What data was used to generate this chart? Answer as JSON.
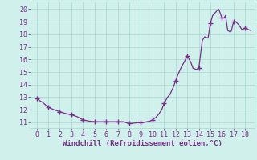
{
  "x": [
    0,
    0.3,
    0.5,
    1.0,
    1.5,
    2.0,
    2.5,
    3.0,
    3.5,
    4.0,
    4.5,
    5.0,
    5.5,
    6.0,
    6.5,
    7.0,
    7.5,
    8.0,
    8.5,
    9.0,
    9.3,
    9.5,
    9.8,
    10.0,
    10.3,
    10.5,
    10.8,
    11.0,
    11.3,
    11.5,
    11.8,
    12.0,
    12.2,
    12.5,
    12.8,
    13.0,
    13.3,
    13.5,
    13.8,
    14.0,
    14.3,
    14.5,
    14.8,
    15.0,
    15.2,
    15.3,
    15.5,
    15.7,
    15.8,
    16.0,
    16.2,
    16.3,
    16.5,
    16.7,
    16.8,
    17.0,
    17.2,
    17.3,
    17.5,
    17.7,
    17.8,
    18.0,
    18.2,
    18.5
  ],
  "y": [
    12.9,
    12.7,
    12.6,
    12.2,
    12.0,
    11.85,
    11.7,
    11.6,
    11.45,
    11.2,
    11.1,
    11.05,
    11.05,
    11.05,
    11.05,
    11.05,
    11.05,
    10.9,
    10.95,
    11.0,
    11.0,
    11.05,
    11.1,
    11.2,
    11.4,
    11.6,
    12.0,
    12.5,
    13.0,
    13.2,
    13.8,
    14.3,
    14.8,
    15.4,
    15.9,
    16.3,
    15.8,
    15.3,
    15.2,
    15.3,
    17.5,
    17.8,
    17.7,
    18.9,
    19.5,
    19.6,
    19.8,
    20.0,
    19.8,
    19.3,
    19.3,
    19.5,
    18.3,
    18.2,
    18.25,
    19.0,
    19.0,
    18.9,
    18.7,
    18.4,
    18.4,
    18.5,
    18.4,
    18.3
  ],
  "marker_x": [
    0,
    1,
    2,
    3,
    4,
    5,
    6,
    7,
    8,
    9,
    10,
    11,
    12,
    13,
    14,
    15,
    16,
    17,
    18
  ],
  "marker_y": [
    12.9,
    12.2,
    11.85,
    11.6,
    11.2,
    11.05,
    11.05,
    11.05,
    10.9,
    11.0,
    11.2,
    12.5,
    14.3,
    16.3,
    15.3,
    18.9,
    19.3,
    19.0,
    18.5
  ],
  "line_color": "#7b2d8b",
  "marker_color": "#7b2d8b",
  "bg_color": "#cff0eb",
  "grid_color": "#a8d8d0",
  "xlabel": "Windchill (Refroidissement éolien,°C)",
  "xlim": [
    -0.5,
    18.8
  ],
  "ylim": [
    10.55,
    20.6
  ],
  "xticks": [
    0,
    1,
    2,
    3,
    4,
    5,
    6,
    7,
    8,
    9,
    10,
    11,
    12,
    13,
    14,
    15,
    16,
    17,
    18
  ],
  "yticks": [
    11,
    12,
    13,
    14,
    15,
    16,
    17,
    18,
    19,
    20
  ],
  "xlabel_fontsize": 6.5,
  "tick_fontsize": 6.0,
  "line_width": 0.9,
  "marker_size": 4.0
}
